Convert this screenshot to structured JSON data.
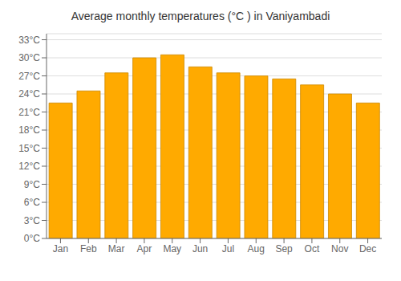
{
  "chart_data": {
    "type": "bar",
    "title": "Average monthly temperatures (°C ) in Vaniyambadi",
    "categories": [
      "Jan",
      "Feb",
      "Mar",
      "Apr",
      "May",
      "Jun",
      "Jul",
      "Aug",
      "Sep",
      "Oct",
      "Nov",
      "Dec"
    ],
    "values": [
      22.5,
      24.5,
      27.5,
      30.0,
      30.5,
      28.5,
      27.5,
      27.0,
      26.5,
      25.5,
      24.0,
      22.5
    ],
    "color": "#FFAA00",
    "ylim": [
      0,
      34
    ],
    "yticks": [
      {
        "value": 0,
        "label": "0°C"
      },
      {
        "value": 3,
        "label": "3°C"
      },
      {
        "value": 6,
        "label": "6°C"
      },
      {
        "value": 9,
        "label": "9°C"
      },
      {
        "value": 12,
        "label": "12°C"
      },
      {
        "value": 15,
        "label": "15°C"
      },
      {
        "value": 18,
        "label": "18°C"
      },
      {
        "value": 21,
        "label": "21°C"
      },
      {
        "value": 24,
        "label": "24°C"
      },
      {
        "value": 27,
        "label": "27°C"
      },
      {
        "value": 30,
        "label": "30°C"
      },
      {
        "value": 33,
        "label": "33°C"
      }
    ],
    "grid": true
  }
}
